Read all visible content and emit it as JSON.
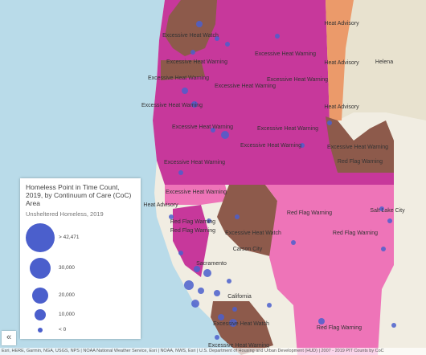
{
  "legend": {
    "title": "Homeless Point in Time Count, 2019, by Continuum of Care (CoC) Area",
    "subtitle": "Unsheltered Homeless, 2019",
    "items": [
      "> 42,471",
      "30,000",
      "20,000",
      "10,000",
      "< 0"
    ]
  },
  "map_labels": [
    "Excessive Heat Watch",
    "Heat Advisory",
    "Excessive Heat Warning",
    "Excessive Heat Warning",
    "Heat Advisory",
    "Helena",
    "Excessive Heat Warning",
    "Excessive Heat Warning",
    "Excessive Heat Warning",
    "Excessive Heat Warning",
    "Heat Advisory",
    "Excessive Heat Warning",
    "Excessive Heat Warning",
    "Excessive Heat Warning",
    "Excessive Heat Warning",
    "Excessive Heat Warning",
    "Red Flag Warning",
    "Excessive Heat Warning",
    "Heat Advisory",
    "Red Flag Warning",
    "Salt Lake City",
    "Red Flag Warning",
    "Red Flag Warning",
    "Excessive Heat Watch",
    "Red Flag Warning",
    "Carson City",
    "Sacramento",
    "California",
    "Red Flag Warning",
    "Excessive Heat Watch",
    "Excessive Heat Warning"
  ],
  "attribution": "Esri, HERE, Garmin, NGA, USGS, NPS | NOAA National Weather Service, Esri | NOAA, NWS, Esri | U.S. Department of Housing and Urban Development (HUD) | 2007 - 2019 PIT Counts by CoC",
  "collapse_button": "«"
}
